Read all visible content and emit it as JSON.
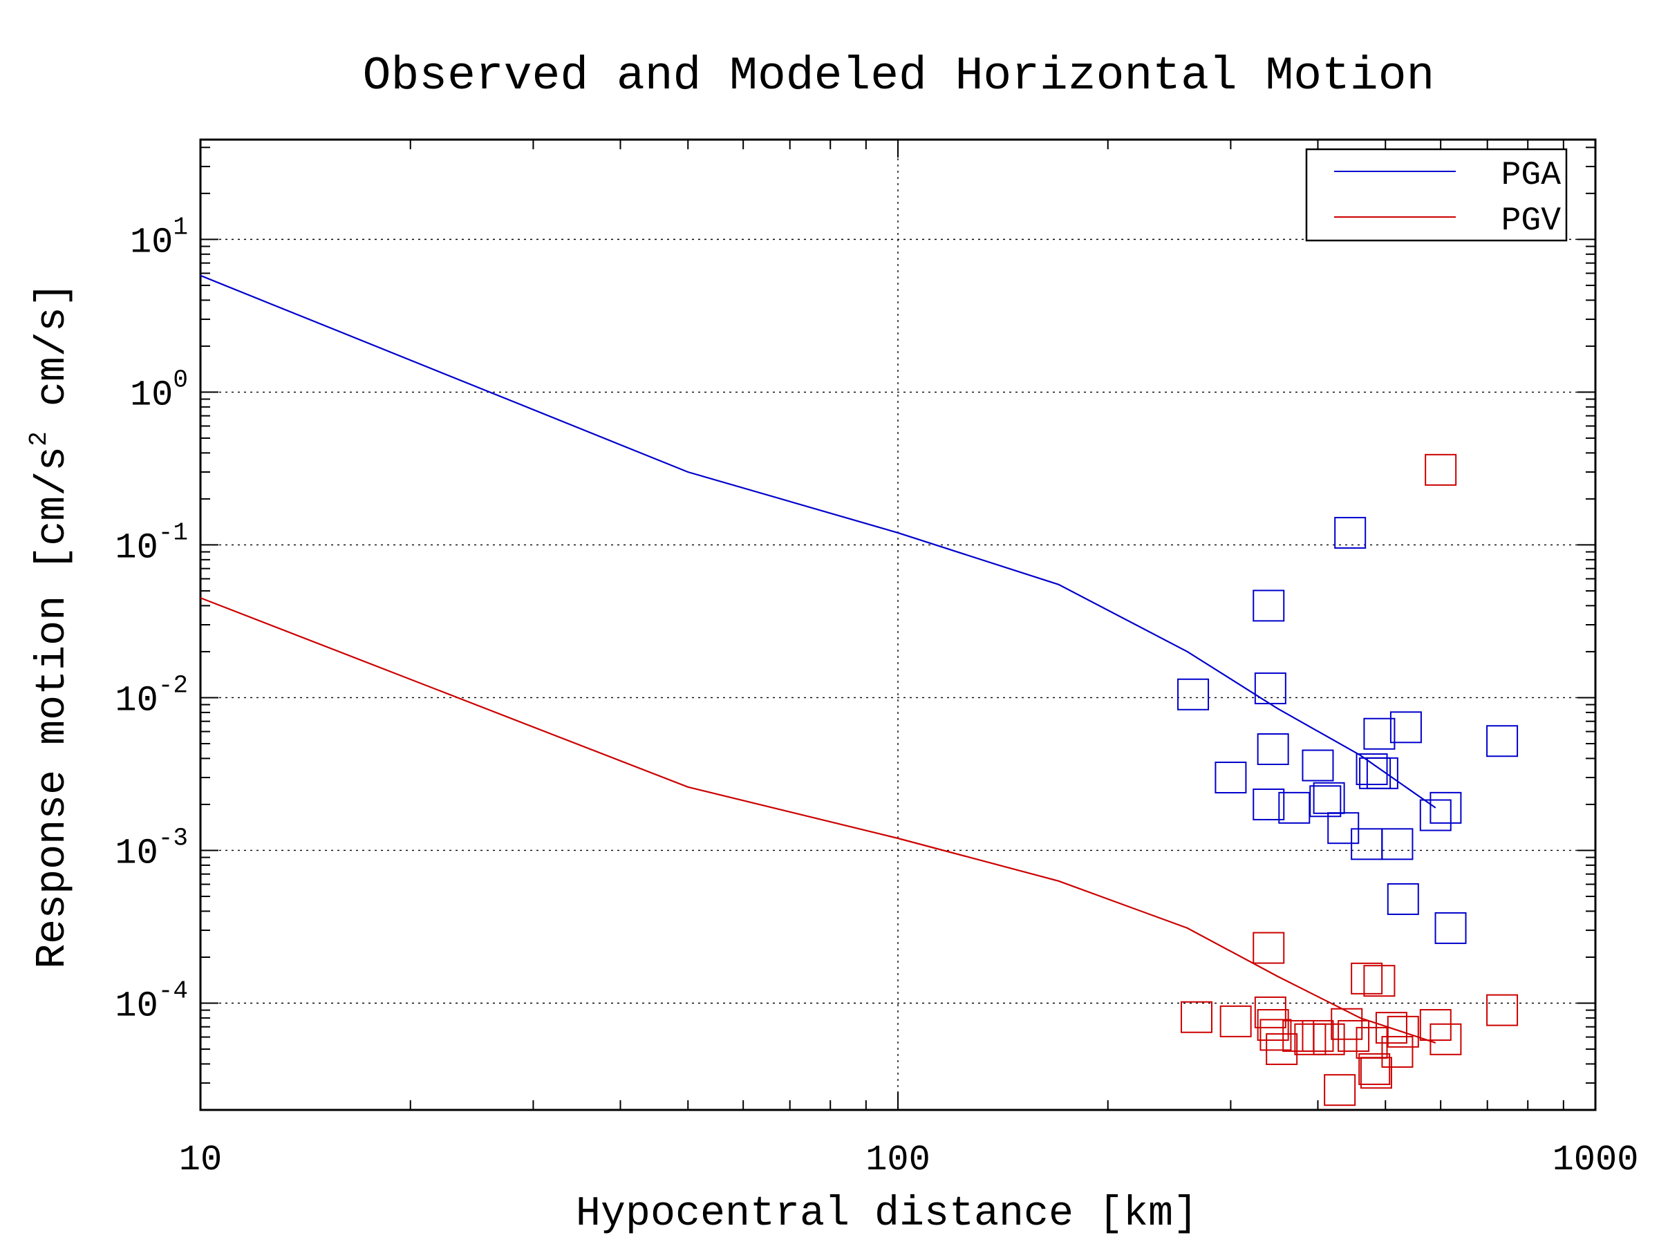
{
  "chart_data": {
    "type": "scatter",
    "title": "Observed and Modeled Horizontal Motion",
    "xlabel": "Hypocentral distance [km]",
    "ylabel_parts": [
      "Response motion [cm/s",
      "2",
      " cm/s]"
    ],
    "x_scale": "log",
    "y_scale": "log",
    "xlim": [
      10,
      1000
    ],
    "ylim": [
      2e-05,
      45
    ],
    "x_ticks": [
      {
        "value": 10,
        "label": "10"
      },
      {
        "value": 100,
        "label": "100"
      },
      {
        "value": 1000,
        "label": "1000"
      }
    ],
    "y_ticks": [
      {
        "value": 0.0001,
        "base": "10",
        "exp": "-4"
      },
      {
        "value": 0.001,
        "base": "10",
        "exp": "-3"
      },
      {
        "value": 0.01,
        "base": "10",
        "exp": "-2"
      },
      {
        "value": 0.1,
        "base": "10",
        "exp": "-1"
      },
      {
        "value": 1,
        "base": "10",
        "exp": "0"
      },
      {
        "value": 10,
        "base": "10",
        "exp": "1"
      }
    ],
    "grid": true,
    "legend_position": "top-right",
    "series": [
      {
        "name": "PGA",
        "color": "#0000cc",
        "model": {
          "x": [
            10,
            50,
            100,
            170,
            260,
            350,
            460,
            590
          ],
          "y": [
            5.8,
            0.3,
            0.12,
            0.055,
            0.02,
            0.0085,
            0.0042,
            0.0019
          ]
        },
        "observed": {
          "x": [
            265,
            300,
            340,
            342,
            345,
            340,
            370,
            400,
            410,
            415,
            435,
            445,
            470,
            478,
            483,
            490,
            495,
            520,
            530,
            535,
            590,
            610,
            620,
            735
          ],
          "y": [
            0.0105,
            0.003,
            0.04,
            0.0115,
            0.0046,
            0.002,
            0.0019,
            0.0036,
            0.0021,
            0.0022,
            0.0014,
            0.12,
            0.0011,
            0.0034,
            0.0032,
            0.0058,
            0.0032,
            0.0011,
            0.00048,
            0.0064,
            0.0017,
            0.0019,
            0.00031,
            0.0052
          ]
        }
      },
      {
        "name": "PGV",
        "color": "#cc0000",
        "model": {
          "x": [
            10,
            50,
            100,
            170,
            260,
            350,
            460,
            590
          ],
          "y": [
            0.045,
            0.0026,
            0.0012,
            0.00063,
            0.00031,
            0.00015,
            8e-05,
            5.5e-05
          ]
        },
        "observed": {
          "x": [
            268,
            305,
            340,
            342,
            345,
            348,
            355,
            375,
            390,
            400,
            415,
            430,
            440,
            450,
            470,
            478,
            482,
            485,
            490,
            510,
            520,
            530,
            590,
            600,
            610,
            735
          ],
          "y": [
            8.1e-05,
            7.6e-05,
            0.00023,
            8.7e-05,
            7.2e-05,
            6.2e-05,
            5e-05,
            6.1e-05,
            5.8e-05,
            6.1e-05,
            5.8e-05,
            2.7e-05,
            7.3e-05,
            6.1e-05,
            0.000145,
            5.5e-05,
            3.7e-05,
            3.5e-05,
            0.00014,
            6.9e-05,
            4.8e-05,
            6.5e-05,
            7.2e-05,
            0.31,
            5.8e-05,
            9e-05
          ]
        }
      }
    ]
  }
}
